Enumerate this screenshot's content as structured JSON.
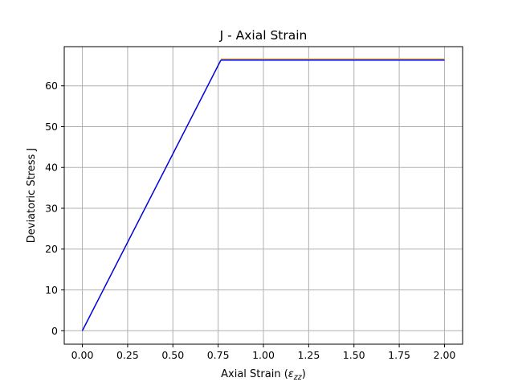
{
  "chart_data": {
    "type": "line",
    "title": "J - Axial Strain",
    "xlabel": "Axial Strain (",
    "xlabel_symbol": "ε",
    "xlabel_subscript": "zz",
    "xlabel_close": ")",
    "ylabel": "Deviatoric Stress J",
    "xlim": [
      -0.1,
      2.1
    ],
    "ylim": [
      -3.3,
      69.6
    ],
    "grid": true,
    "x_ticks": [
      "0.00",
      "0.25",
      "0.50",
      "0.75",
      "1.00",
      "1.25",
      "1.50",
      "1.75",
      "2.00"
    ],
    "x_tick_values": [
      0,
      0.25,
      0.5,
      0.75,
      1.0,
      1.25,
      1.5,
      1.75,
      2.0
    ],
    "y_ticks": [
      "0",
      "10",
      "20",
      "30",
      "40",
      "50",
      "60"
    ],
    "y_tick_values": [
      0,
      10,
      20,
      30,
      40,
      50,
      60
    ],
    "series": [
      {
        "color": "#0000dd",
        "x": [
          0,
          0.765
        ],
        "y": [
          0,
          66.3
        ]
      },
      {
        "color": "#dba856",
        "x": [
          0.765,
          2.0
        ],
        "y": [
          66.5,
          66.5
        ]
      },
      {
        "color": "#0000dd",
        "x": [
          0.765,
          2.0
        ],
        "y": [
          66.3,
          66.3
        ]
      }
    ]
  }
}
